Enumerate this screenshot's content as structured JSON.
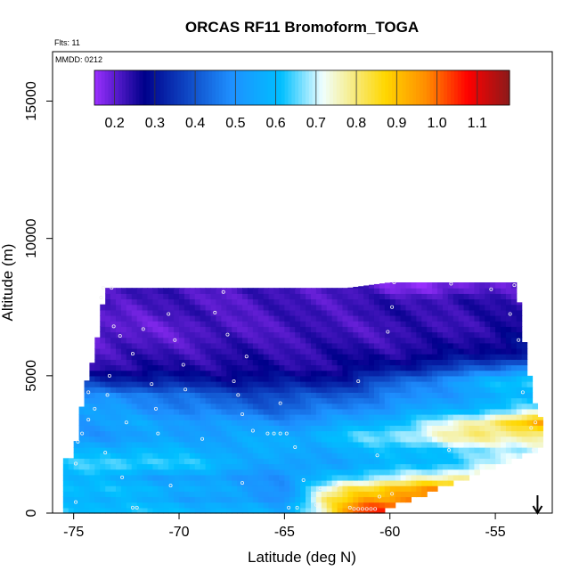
{
  "chart_data": {
    "type": "heatmap",
    "title": "ORCAS RF11 Bromoform_TOGA",
    "annotations": {
      "flights": "Flts: 11",
      "date": "MMDD: 0212"
    },
    "xlabel": "Latitude (deg N)",
    "ylabel": "Altitude (m)",
    "xlim": [
      -76,
      -52.3
    ],
    "ylim": [
      0,
      16800
    ],
    "x_ticks": [
      -75,
      -70,
      -65,
      -60,
      -55
    ],
    "x_tick_labels": [
      "-75",
      "-70",
      "-65",
      "-60",
      "-55"
    ],
    "y_ticks": [
      0,
      5000,
      10000,
      15000
    ],
    "y_tick_labels": [
      "0",
      "5000",
      "10000",
      "15000"
    ],
    "colorbar": {
      "min": 0.15,
      "max": 1.18,
      "ticks": [
        0.2,
        0.3,
        0.4,
        0.5,
        0.6,
        0.7,
        0.8,
        0.9,
        1.0,
        1.1
      ],
      "tick_labels": [
        "0.2",
        "0.3",
        "0.4",
        "0.5",
        "0.6",
        "0.7",
        "0.8",
        "0.9",
        "1.0",
        "1.1"
      ],
      "position": "top"
    },
    "colors": {
      "stops": [
        "#9b30ff",
        "#00008b",
        "#1e90ff",
        "#00bfff",
        "#f0ffff",
        "#ffd700",
        "#ff8c00",
        "#ff0000",
        "#8b1a1a"
      ],
      "stop_positions": [
        0.0,
        0.12,
        0.33,
        0.45,
        0.55,
        0.7,
        0.8,
        0.9,
        1.0
      ]
    },
    "arrow": {
      "x": -53,
      "direction": "down"
    },
    "columns": [
      {
        "lat": -75.0,
        "top": 2000
      },
      {
        "lat": -74.5,
        "top": 4500
      },
      {
        "lat": -74.0,
        "top": 5800
      },
      {
        "lat": -73.5,
        "top": 8200
      },
      {
        "lat": -72.0,
        "top": 8200
      },
      {
        "lat": -70.0,
        "top": 8200
      },
      {
        "lat": -68.0,
        "top": 8200
      },
      {
        "lat": -66.0,
        "top": 8200
      },
      {
        "lat": -64.0,
        "top": 8200
      },
      {
        "lat": -62.0,
        "top": 8200
      },
      {
        "lat": -60.0,
        "top": 8400
      },
      {
        "lat": -58.0,
        "top": 8400
      },
      {
        "lat": -56.0,
        "top": 8400
      },
      {
        "lat": -54.0,
        "top": 8400
      },
      {
        "lat": -53.5,
        "top": 5500
      },
      {
        "lat": -53.0,
        "top": 3500
      }
    ],
    "bottom_edge": [
      {
        "lat": -75.5,
        "alt": 0
      },
      {
        "lat": -64.0,
        "alt": 0
      },
      {
        "lat": -61.0,
        "alt": 0
      },
      {
        "lat": -58.0,
        "alt": 900
      },
      {
        "lat": -55.0,
        "alt": 1800
      },
      {
        "lat": -53.0,
        "alt": 2400
      }
    ],
    "layers": [
      {
        "alt": 200,
        "values": [
          [
            -75.5,
            0.62
          ],
          [
            -70,
            0.6
          ],
          [
            -65,
            0.55
          ],
          [
            -63,
            0.78
          ],
          [
            -61.5,
            1.02
          ],
          [
            -60,
            1.05
          ]
        ]
      },
      {
        "alt": 500,
        "values": [
          [
            -75.5,
            0.6
          ],
          [
            -70,
            0.55
          ],
          [
            -65,
            0.5
          ],
          [
            -63,
            0.8
          ],
          [
            -61,
            0.95
          ],
          [
            -59,
            0.98
          ]
        ]
      },
      {
        "alt": 900,
        "values": [
          [
            -75.5,
            0.62
          ],
          [
            -70,
            0.58
          ],
          [
            -65,
            0.5
          ],
          [
            -62,
            0.82
          ],
          [
            -60,
            0.9
          ],
          [
            -58,
            0.95
          ]
        ]
      },
      {
        "alt": 1300,
        "values": [
          [
            -75.5,
            0.6
          ],
          [
            -72,
            0.55
          ],
          [
            -68,
            0.52
          ],
          [
            -65,
            0.5
          ],
          [
            -62,
            0.65
          ],
          [
            -59,
            0.72
          ],
          [
            -56,
            0.8
          ]
        ]
      },
      {
        "alt": 1800,
        "values": [
          [
            -75.5,
            0.62
          ],
          [
            -72,
            0.66
          ],
          [
            -68,
            0.6
          ],
          [
            -65,
            0.52
          ],
          [
            -62,
            0.55
          ],
          [
            -58,
            0.6
          ],
          [
            -54,
            0.72
          ]
        ]
      },
      {
        "alt": 2300,
        "values": [
          [
            -75,
            0.58
          ],
          [
            -72,
            0.6
          ],
          [
            -68,
            0.56
          ],
          [
            -64,
            0.55
          ],
          [
            -60,
            0.6
          ],
          [
            -56,
            0.65
          ],
          [
            -53,
            0.72
          ]
        ]
      },
      {
        "alt": 2800,
        "values": [
          [
            -75,
            0.5
          ],
          [
            -72,
            0.52
          ],
          [
            -68,
            0.54
          ],
          [
            -64,
            0.58
          ],
          [
            -60,
            0.68
          ],
          [
            -56,
            0.8
          ],
          [
            -53,
            0.78
          ]
        ]
      },
      {
        "alt": 3300,
        "values": [
          [
            -75,
            0.52
          ],
          [
            -72,
            0.55
          ],
          [
            -68,
            0.52
          ],
          [
            -64,
            0.5
          ],
          [
            -60,
            0.6
          ],
          [
            -57,
            0.72
          ],
          [
            -53,
            0.92
          ]
        ]
      },
      {
        "alt": 3800,
        "values": [
          [
            -74.8,
            0.55
          ],
          [
            -72,
            0.5
          ],
          [
            -68,
            0.45
          ],
          [
            -65,
            0.42
          ],
          [
            -62,
            0.48
          ],
          [
            -58,
            0.55
          ],
          [
            -53,
            0.66
          ]
        ]
      },
      {
        "alt": 4300,
        "values": [
          [
            -74.5,
            0.48
          ],
          [
            -72,
            0.48
          ],
          [
            -68,
            0.4
          ],
          [
            -65,
            0.38
          ],
          [
            -62,
            0.42
          ],
          [
            -58,
            0.5
          ],
          [
            -53,
            0.6
          ]
        ]
      },
      {
        "alt": 4800,
        "values": [
          [
            -74.2,
            0.35
          ],
          [
            -71,
            0.32
          ],
          [
            -68,
            0.3
          ],
          [
            -65,
            0.3
          ],
          [
            -62,
            0.32
          ],
          [
            -59,
            0.45
          ],
          [
            -55,
            0.6
          ],
          [
            -53.5,
            0.65
          ]
        ]
      },
      {
        "alt": 5300,
        "values": [
          [
            -74,
            0.25
          ],
          [
            -71,
            0.25
          ],
          [
            -68,
            0.26
          ],
          [
            -65,
            0.25
          ],
          [
            -62,
            0.26
          ],
          [
            -59,
            0.32
          ],
          [
            -55,
            0.42
          ],
          [
            -53.5,
            0.5
          ]
        ]
      },
      {
        "alt": 5800,
        "values": [
          [
            -74,
            0.22
          ],
          [
            -71,
            0.23
          ],
          [
            -68,
            0.24
          ],
          [
            -65,
            0.24
          ],
          [
            -62,
            0.25
          ],
          [
            -58,
            0.26
          ],
          [
            -54,
            0.3
          ]
        ]
      },
      {
        "alt": 6300,
        "values": [
          [
            -73.8,
            0.2
          ],
          [
            -71,
            0.21
          ],
          [
            -68,
            0.22
          ],
          [
            -65,
            0.23
          ],
          [
            -62,
            0.23
          ],
          [
            -58,
            0.24
          ],
          [
            -54,
            0.28
          ]
        ]
      },
      {
        "alt": 6800,
        "values": [
          [
            -73.8,
            0.19
          ],
          [
            -71,
            0.2
          ],
          [
            -68,
            0.21
          ],
          [
            -65,
            0.22
          ],
          [
            -62,
            0.22
          ],
          [
            -58,
            0.23
          ],
          [
            -54,
            0.25
          ]
        ]
      },
      {
        "alt": 7300,
        "values": [
          [
            -73.6,
            0.2
          ],
          [
            -71,
            0.22
          ],
          [
            -68,
            0.22
          ],
          [
            -65,
            0.22
          ],
          [
            -62,
            0.23
          ],
          [
            -58,
            0.24
          ],
          [
            -54,
            0.24
          ]
        ]
      },
      {
        "alt": 7800,
        "values": [
          [
            -73.5,
            0.23
          ],
          [
            -71,
            0.22
          ],
          [
            -68,
            0.21
          ],
          [
            -65,
            0.22
          ],
          [
            -62,
            0.22
          ],
          [
            -58,
            0.24
          ],
          [
            -54,
            0.23
          ]
        ]
      },
      {
        "alt": 8200,
        "values": [
          [
            -73.5,
            0.23
          ],
          [
            -70,
            0.22
          ],
          [
            -66,
            0.22
          ],
          [
            -62,
            0.22
          ],
          [
            -60,
            0.18
          ],
          [
            -57,
            0.17
          ],
          [
            -54,
            0.22
          ]
        ]
      }
    ],
    "sample_points": [
      {
        "lat": -73.6,
        "alt": 8200
      },
      {
        "lat": -73.2,
        "alt": 8200
      },
      {
        "lat": -67.9,
        "alt": 8050
      },
      {
        "lat": -59.8,
        "alt": 8400
      },
      {
        "lat": -57.1,
        "alt": 8350
      },
      {
        "lat": -55.2,
        "alt": 8150
      },
      {
        "lat": -54.1,
        "alt": 8300
      },
      {
        "lat": -73.7,
        "alt": 7850
      },
      {
        "lat": -70.5,
        "alt": 7250
      },
      {
        "lat": -68.3,
        "alt": 7300
      },
      {
        "lat": -59.9,
        "alt": 7500
      },
      {
        "lat": -54.3,
        "alt": 7250
      },
      {
        "lat": -73.1,
        "alt": 6800
      },
      {
        "lat": -72.8,
        "alt": 6450
      },
      {
        "lat": -71.7,
        "alt": 6700
      },
      {
        "lat": -67.7,
        "alt": 6500
      },
      {
        "lat": -60.1,
        "alt": 6600
      },
      {
        "lat": -53.9,
        "alt": 6300
      },
      {
        "lat": -70.2,
        "alt": 6300
      },
      {
        "lat": -72.2,
        "alt": 5800
      },
      {
        "lat": -66.8,
        "alt": 5700
      },
      {
        "lat": -69.8,
        "alt": 5400
      },
      {
        "lat": -73.3,
        "alt": 5000
      },
      {
        "lat": -71.3,
        "alt": 4700
      },
      {
        "lat": -67.4,
        "alt": 4800
      },
      {
        "lat": -61.5,
        "alt": 4800
      },
      {
        "lat": -74.3,
        "alt": 4400
      },
      {
        "lat": -73.4,
        "alt": 4300
      },
      {
        "lat": -69.7,
        "alt": 4500
      },
      {
        "lat": -67.2,
        "alt": 4300
      },
      {
        "lat": -65.2,
        "alt": 4000
      },
      {
        "lat": -74.0,
        "alt": 3800
      },
      {
        "lat": -71.1,
        "alt": 3800
      },
      {
        "lat": -67.0,
        "alt": 3600
      },
      {
        "lat": -74.3,
        "alt": 3400
      },
      {
        "lat": -72.5,
        "alt": 3300
      },
      {
        "lat": -66.5,
        "alt": 3000
      },
      {
        "lat": -65.8,
        "alt": 2900
      },
      {
        "lat": -65.5,
        "alt": 2900
      },
      {
        "lat": -65.2,
        "alt": 2900
      },
      {
        "lat": -64.9,
        "alt": 2900
      },
      {
        "lat": -74.6,
        "alt": 2900
      },
      {
        "lat": -71.0,
        "alt": 2900
      },
      {
        "lat": -68.9,
        "alt": 2700
      },
      {
        "lat": -74.8,
        "alt": 2600
      },
      {
        "lat": -73.5,
        "alt": 2200
      },
      {
        "lat": -64.5,
        "alt": 2400
      },
      {
        "lat": -60.6,
        "alt": 2100
      },
      {
        "lat": -57.2,
        "alt": 2300
      },
      {
        "lat": -53.2,
        "alt": 2300
      },
      {
        "lat": -74.9,
        "alt": 1800
      },
      {
        "lat": -72.7,
        "alt": 1300
      },
      {
        "lat": -70.4,
        "alt": 1000
      },
      {
        "lat": -67.0,
        "alt": 1100
      },
      {
        "lat": -64.1,
        "alt": 1200
      },
      {
        "lat": -62.5,
        "alt": 1000
      },
      {
        "lat": -63.3,
        "alt": 900
      },
      {
        "lat": -74.9,
        "alt": 400
      },
      {
        "lat": -72.2,
        "alt": 200
      },
      {
        "lat": -72.0,
        "alt": 200
      },
      {
        "lat": -64.8,
        "alt": 200
      },
      {
        "lat": -64.4,
        "alt": 200
      },
      {
        "lat": -63.5,
        "alt": 300
      },
      {
        "lat": -61.9,
        "alt": 200
      },
      {
        "lat": -61.7,
        "alt": 150
      },
      {
        "lat": -61.5,
        "alt": 150
      },
      {
        "lat": -61.3,
        "alt": 150
      },
      {
        "lat": -61.1,
        "alt": 150
      },
      {
        "lat": -60.9,
        "alt": 150
      },
      {
        "lat": -60.7,
        "alt": 150
      },
      {
        "lat": -59.9,
        "alt": 700
      },
      {
        "lat": -60.5,
        "alt": 600
      },
      {
        "lat": -53.3,
        "alt": 3100
      },
      {
        "lat": -53.1,
        "alt": 3300
      },
      {
        "lat": -53.7,
        "alt": 4400
      }
    ]
  }
}
